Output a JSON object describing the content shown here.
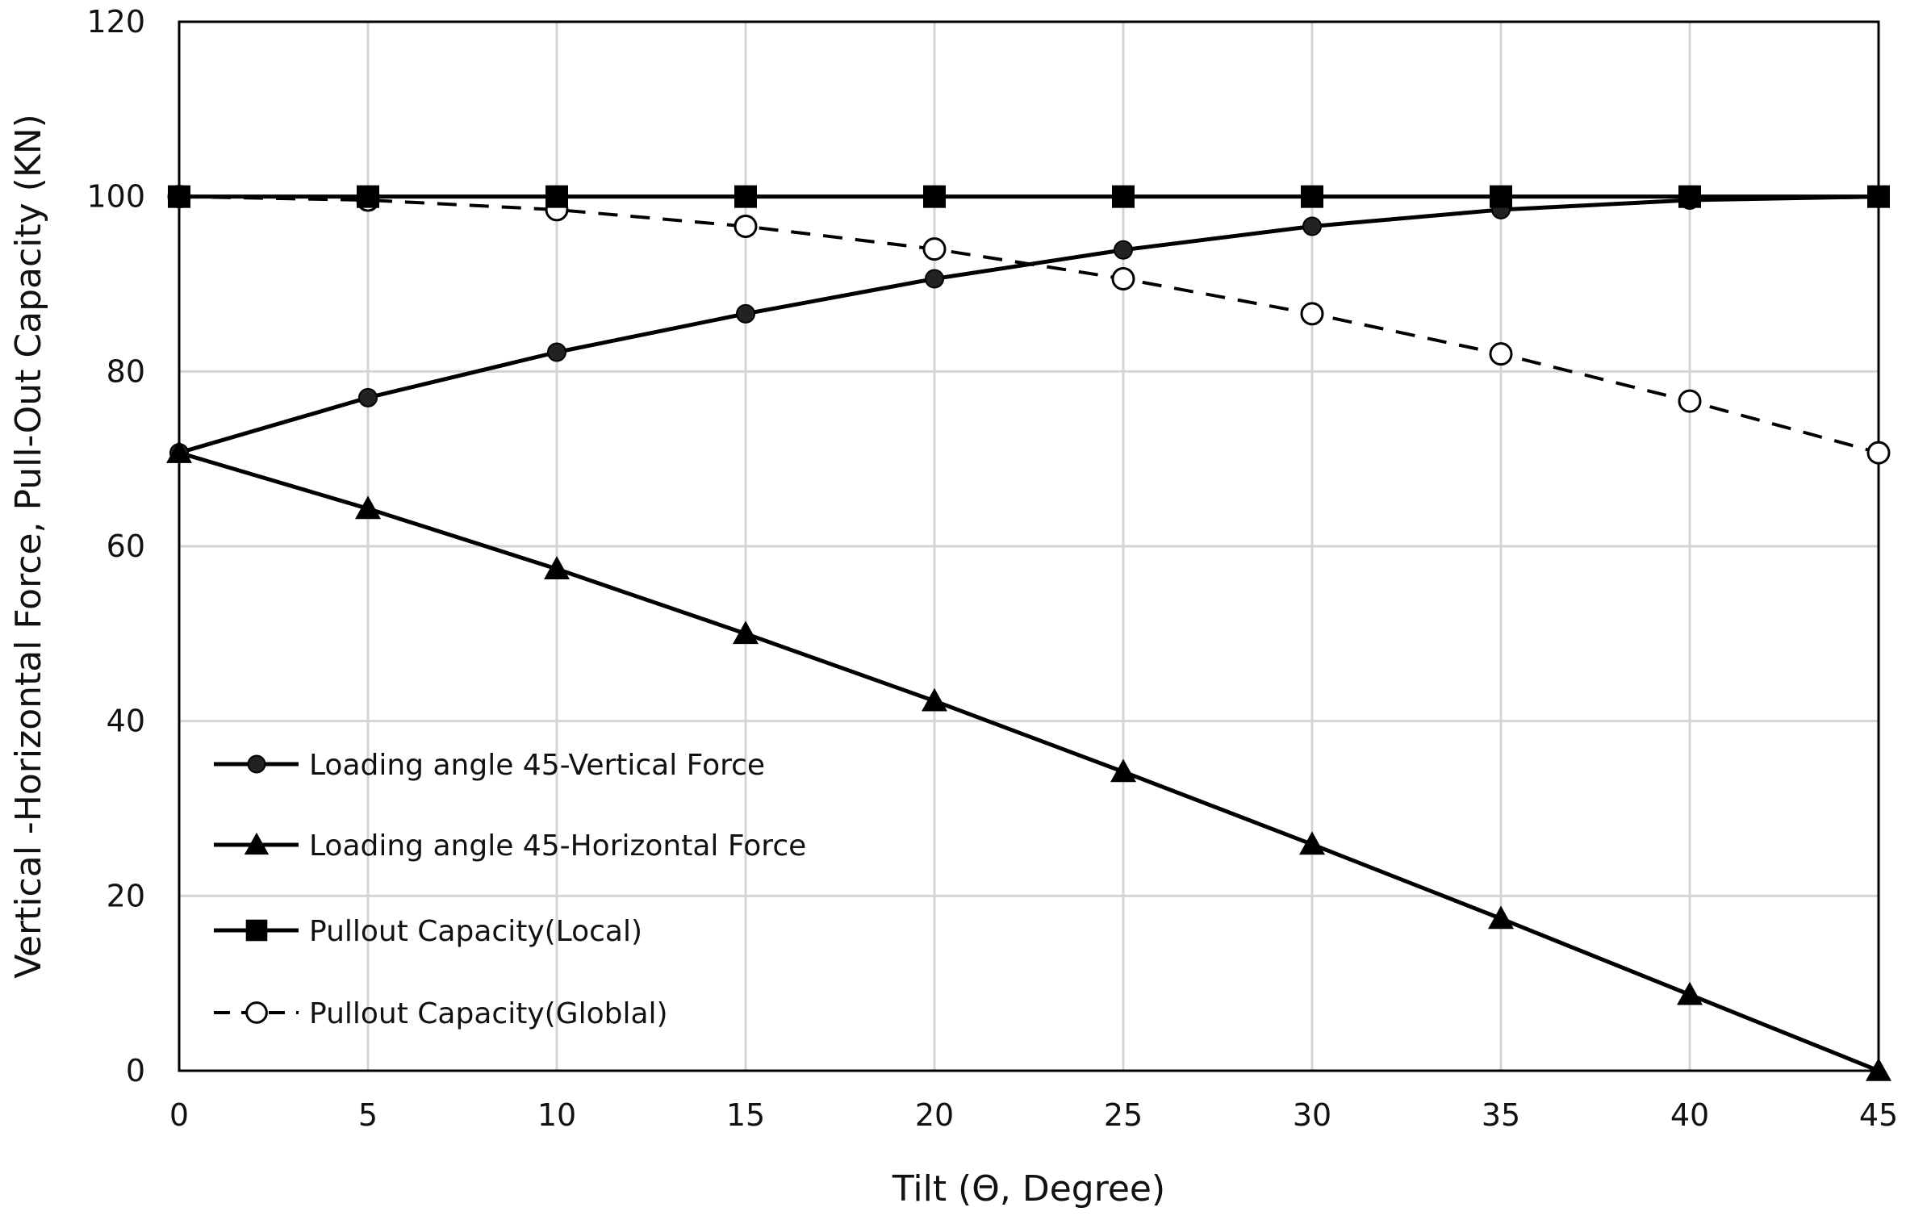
{
  "chart_data": {
    "type": "line",
    "xlabel": "Tilt (Θ, Degree)",
    "ylabel": "Vertical -Horizontal Force, Pull-Out Capacity (KN)",
    "xlim": [
      0,
      45
    ],
    "ylim": [
      0,
      120
    ],
    "x_ticks": [
      0,
      5,
      10,
      15,
      20,
      25,
      30,
      35,
      40,
      45
    ],
    "y_ticks": [
      0,
      20,
      40,
      60,
      80,
      100,
      120
    ],
    "grid": true,
    "legend_position": "lower-left",
    "x": [
      0,
      5,
      10,
      15,
      20,
      25,
      30,
      35,
      40,
      45
    ],
    "series": [
      {
        "name": "Loading angle 45-Vertical Force",
        "values": [
          70.7,
          77.0,
          82.2,
          86.6,
          90.6,
          93.9,
          96.6,
          98.5,
          99.6,
          100.0
        ],
        "marker": "circle-filled",
        "line": "solid",
        "color": "#000000"
      },
      {
        "name": "Loading angle 45-Horizontal Force",
        "values": [
          70.7,
          64.3,
          57.4,
          50.0,
          42.3,
          34.2,
          25.9,
          17.4,
          8.7,
          0.0
        ],
        "marker": "triangle-filled",
        "line": "solid",
        "color": "#000000"
      },
      {
        "name": "Pullout Capacity(Local)",
        "values": [
          100,
          100,
          100,
          100,
          100,
          100,
          100,
          100,
          100,
          100
        ],
        "marker": "square-filled",
        "line": "solid",
        "color": "#000000"
      },
      {
        "name": "Pullout Capacity(Globlal)",
        "values": [
          100.0,
          99.6,
          98.5,
          96.6,
          94.0,
          90.6,
          86.6,
          82.0,
          76.6,
          70.7
        ],
        "marker": "circle-open",
        "line": "dashed",
        "color": "#000000"
      }
    ]
  }
}
